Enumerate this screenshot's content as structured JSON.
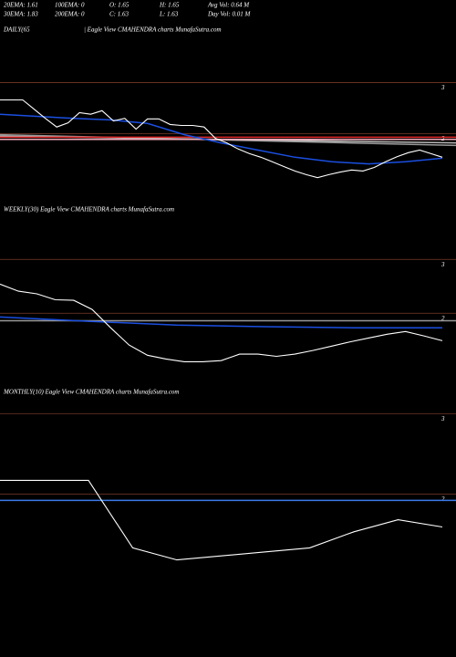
{
  "header": {
    "row1": [
      "20EMA: 1.61",
      "100EMA: 0",
      "O: 1.65",
      "H: 1.65",
      "Avg Vol: 0.64  M"
    ],
    "row2": [
      "30EMA: 1.83",
      "200EMA: 0",
      "C: 1.63",
      "L: 1.63",
      "Day Vol: 0.01 M"
    ]
  },
  "panels": [
    {
      "labels": [
        "DAILY(65",
        "| Eagle   View  CMAHENDRA charts MunafaSutra.com"
      ],
      "ylim": [
        0.6,
        3.9
      ],
      "yticks": [
        3,
        2
      ],
      "series": [
        {
          "color": "#999999",
          "values": [
            1.98,
            1.77
          ]
        },
        {
          "color": "#bbbbbb",
          "values": [
            1.95,
            1.82
          ]
        },
        {
          "color": "#f0a8b8",
          "values": [
            1.89,
            1.89
          ]
        },
        {
          "color": "#e02828",
          "values": [
            1.93,
            1.93
          ]
        },
        {
          "color": "#1a4fe0",
          "values": [
            2.38,
            2.34,
            2.3,
            2.27,
            2.2,
            1.98,
            1.82,
            1.68,
            1.54,
            1.45,
            1.41,
            1.45,
            1.52
          ]
        },
        {
          "color": "#ffffff",
          "values": [
            2.66,
            2.66,
            2.66,
            2.48,
            2.3,
            2.13,
            2.21,
            2.41,
            2.38,
            2.45,
            2.25,
            2.3,
            2.09,
            2.29,
            2.29,
            2.18,
            2.16,
            2.16,
            2.13,
            1.91,
            1.82,
            1.7,
            1.61,
            1.54,
            1.45,
            1.36,
            1.27,
            1.2,
            1.14,
            1.2,
            1.25,
            1.29,
            1.27,
            1.34,
            1.45,
            1.55,
            1.63,
            1.68,
            1.61,
            1.54
          ]
        }
      ]
    },
    {
      "labels": [
        "WEEKLY(30) Eagle   View  CMAHENDRA charts MunafaSutra.com"
      ],
      "ylim": [
        0.7,
        3.75
      ],
      "yticks": [
        3,
        2
      ],
      "series": [
        {
          "color": "#999999",
          "values": [
            1.86,
            1.86
          ]
        },
        {
          "color": "#1a4fe0",
          "values": [
            1.93,
            1.85,
            1.78,
            1.75,
            1.73,
            1.73
          ]
        },
        {
          "color": "#ffffff",
          "values": [
            2.54,
            2.41,
            2.36,
            2.25,
            2.24,
            2.07,
            1.73,
            1.41,
            1.22,
            1.15,
            1.1,
            1.1,
            1.12,
            1.24,
            1.24,
            1.2,
            1.24,
            1.31,
            1.39,
            1.47,
            1.54,
            1.61,
            1.66,
            1.58,
            1.49
          ]
        }
      ]
    },
    {
      "labels": [
        "MONTHLY(10) Eagle   View  CMAHENDRA charts MunafaSutra.com"
      ],
      "ylim": [
        0.2,
        3.15
      ],
      "yticks": [
        3,
        2
      ],
      "series": [
        {
          "color": "#3a7ae8",
          "values": [
            1.92,
            1.92
          ]
        },
        {
          "color": "#ffffff",
          "values": [
            2.17,
            2.17,
            2.17,
            1.33,
            1.18,
            1.23,
            1.28,
            1.33,
            1.53,
            1.68,
            1.59
          ]
        }
      ]
    }
  ]
}
